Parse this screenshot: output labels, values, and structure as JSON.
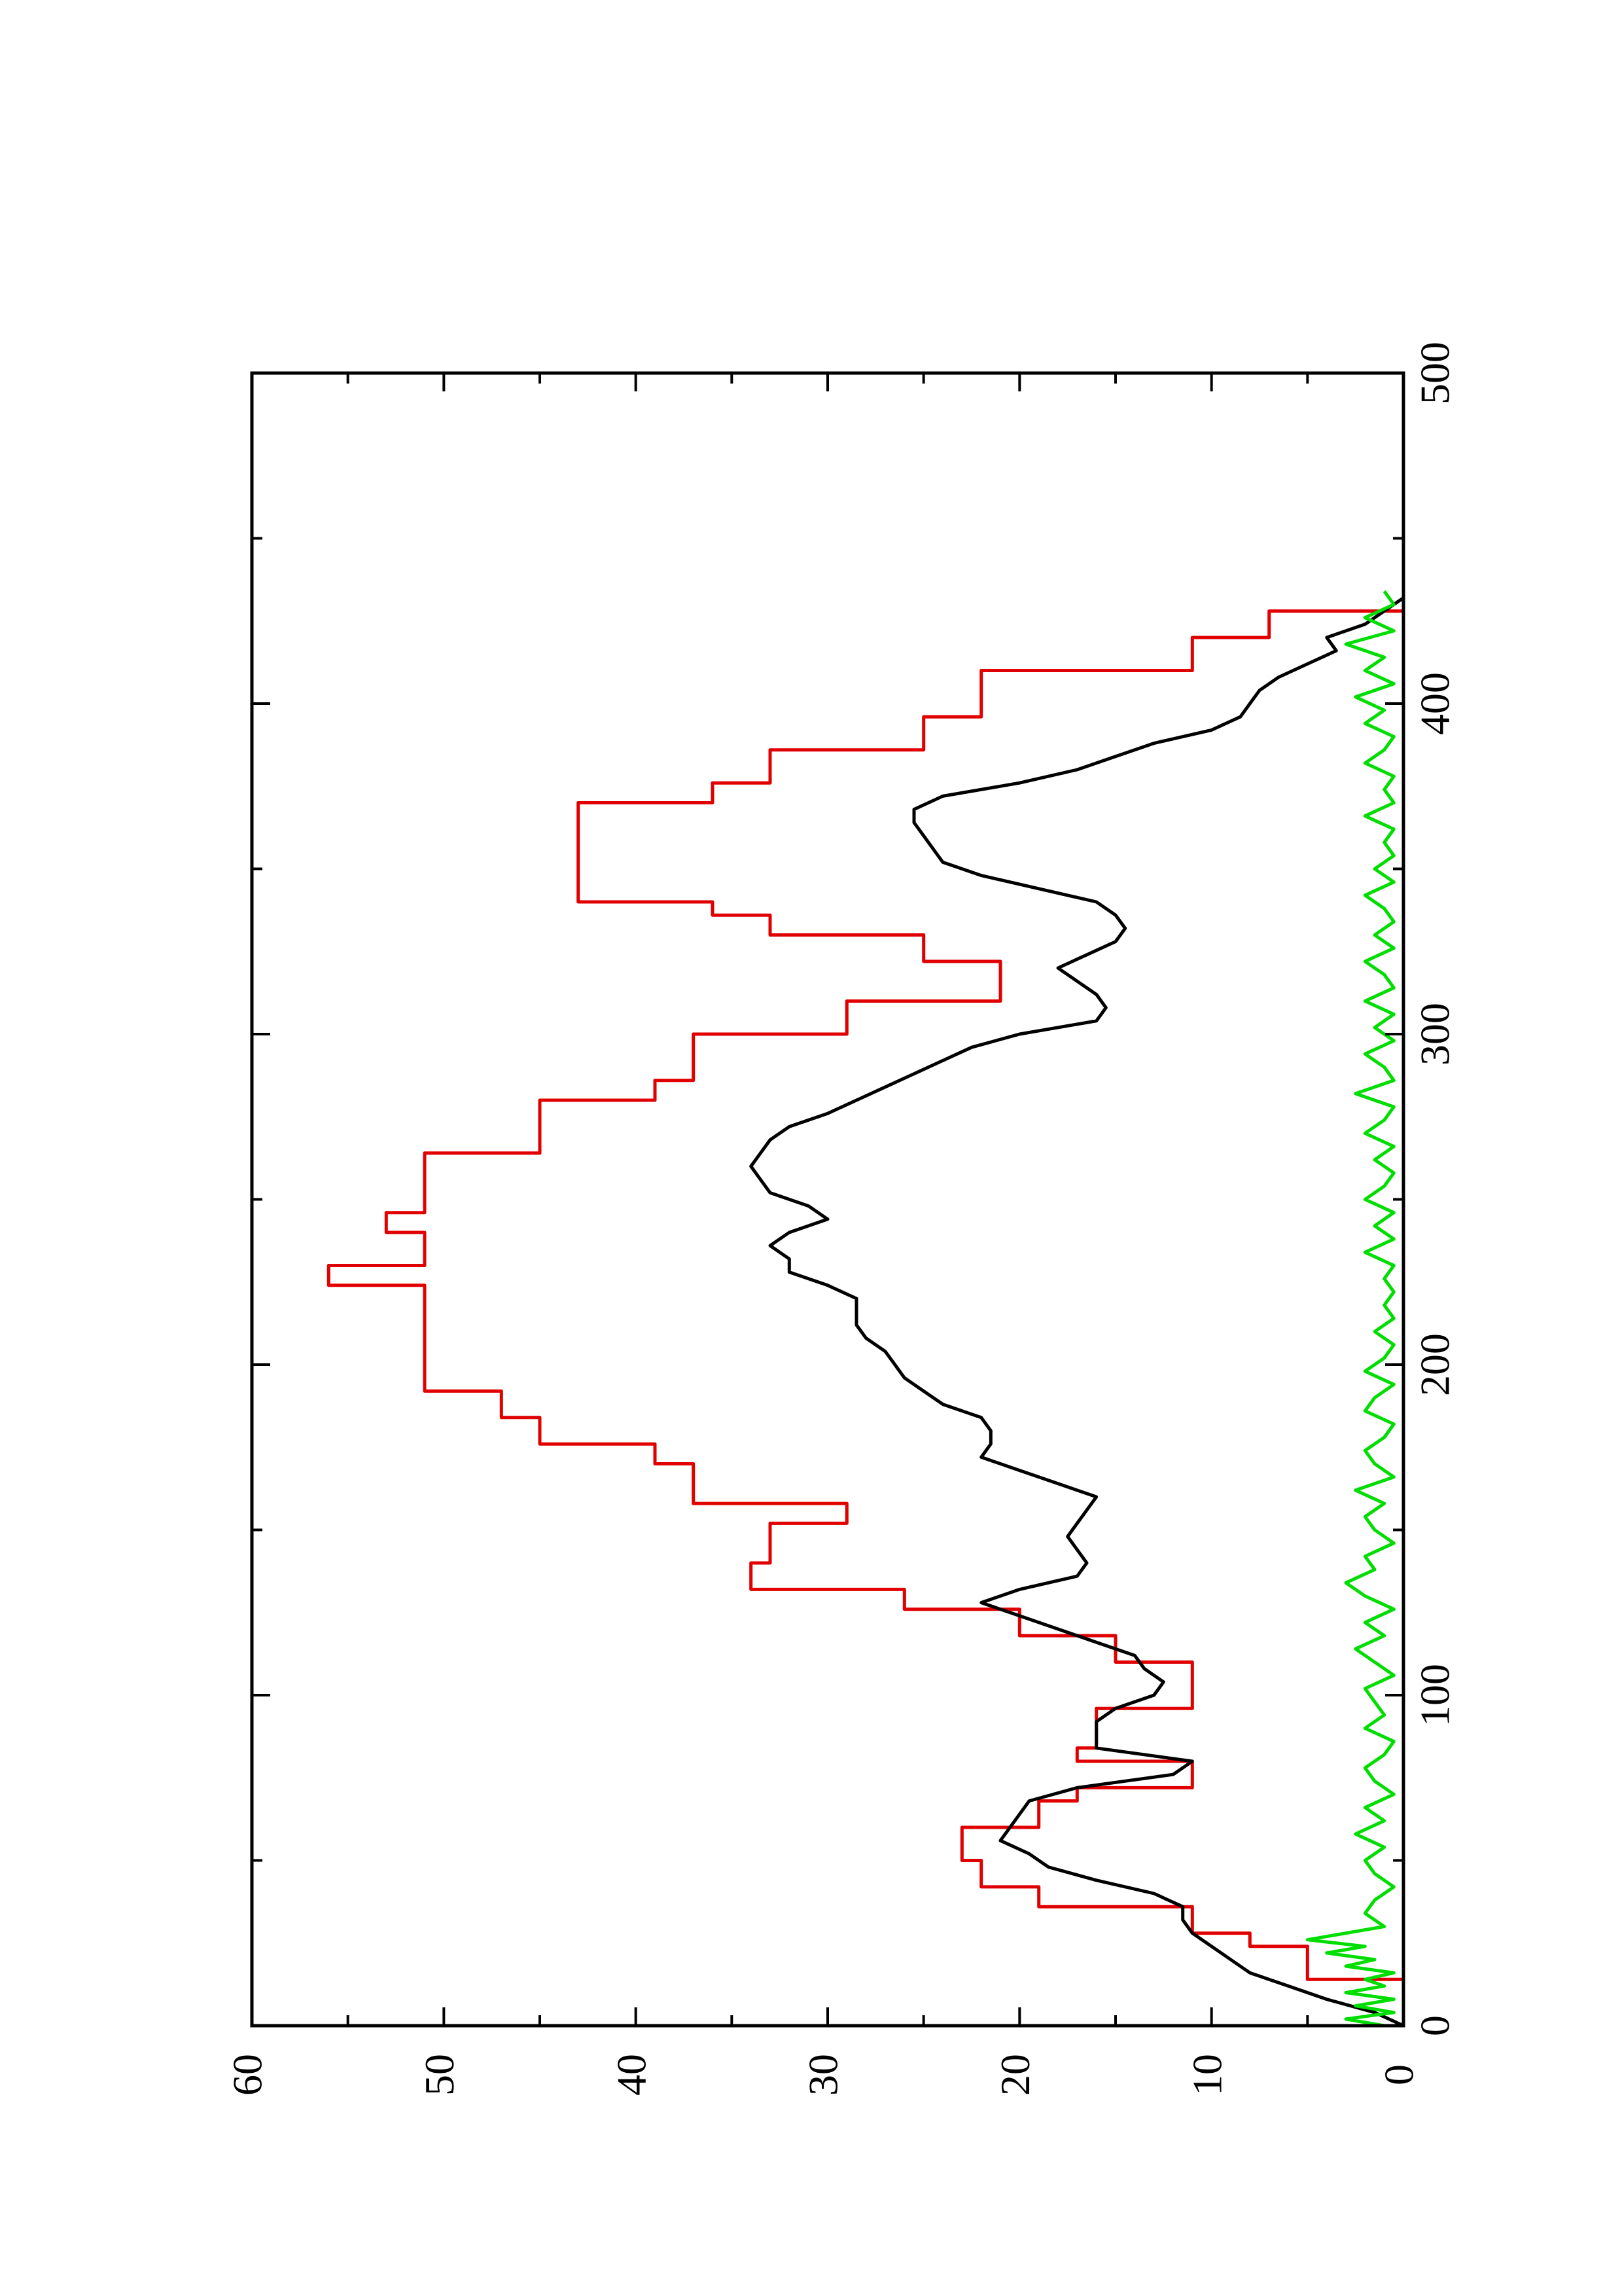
{
  "chart_data": {
    "type": "line",
    "orientation": "rotated-90-ccw",
    "title": "",
    "xlabel": "",
    "ylabel": "",
    "xlim": [
      0,
      500
    ],
    "ylim": [
      0,
      60
    ],
    "x_ticks": [
      0,
      100,
      200,
      300,
      400,
      500
    ],
    "x_minor_ticks": [
      50,
      150,
      250,
      350,
      450
    ],
    "y_ticks": [
      0,
      10,
      20,
      30,
      40,
      50,
      60
    ],
    "y_minor_ticks": [
      5,
      15,
      25,
      35,
      45,
      55
    ],
    "x_tick_labels": [
      "0",
      "100",
      "200",
      "300",
      "400",
      "500"
    ],
    "y_tick_labels": [
      "0",
      "10",
      "20",
      "30",
      "40",
      "50",
      "60"
    ],
    "grid": false,
    "legend": "none",
    "series": [
      {
        "color": "#e00000",
        "style": "stepped",
        "x": [
          0,
          14,
          14,
          24,
          24,
          28,
          28,
          36,
          36,
          42,
          42,
          50,
          50,
          60,
          60,
          68,
          68,
          72,
          72,
          80,
          80,
          84,
          84,
          96,
          96,
          110,
          110,
          118,
          118,
          126,
          126,
          132,
          132,
          140,
          140,
          152,
          152,
          158,
          158,
          170,
          170,
          176,
          176,
          184,
          184,
          192,
          192,
          200,
          200,
          224,
          224,
          230,
          230,
          240,
          240,
          246,
          246,
          252,
          252,
          256,
          256,
          264,
          264,
          280,
          280,
          286,
          286,
          300,
          300,
          310,
          310,
          322,
          322,
          330,
          330,
          336,
          336,
          340,
          340,
          350,
          350,
          370,
          370,
          376,
          376,
          386,
          386,
          396,
          396,
          410,
          410,
          420,
          420,
          428,
          428,
          430
        ],
        "y": [
          0,
          0,
          5,
          5,
          8,
          8,
          11,
          11,
          19,
          19,
          22,
          22,
          23,
          23,
          19,
          19,
          17,
          17,
          11,
          11,
          17,
          17,
          16,
          16,
          11,
          11,
          15,
          15,
          20,
          20,
          26,
          26,
          34,
          34,
          33,
          33,
          29,
          29,
          37,
          37,
          39,
          39,
          45,
          45,
          47,
          47,
          51,
          51,
          51,
          51,
          56,
          56,
          51,
          51,
          53,
          53,
          51,
          51,
          51,
          51,
          51,
          51,
          45,
          45,
          39,
          39,
          37,
          37,
          29,
          29,
          21,
          21,
          25,
          25,
          33,
          33,
          36,
          36,
          43,
          43,
          43,
          43,
          36,
          36,
          33,
          33,
          25,
          25,
          22,
          22,
          11,
          11,
          7,
          7,
          0,
          0
        ]
      },
      {
        "color": "#000000",
        "style": "line",
        "x": [
          0,
          4,
          8,
          12,
          16,
          20,
          24,
          28,
          32,
          36,
          40,
          44,
          48,
          52,
          56,
          60,
          64,
          68,
          72,
          76,
          80,
          84,
          88,
          92,
          96,
          100,
          104,
          108,
          112,
          116,
          120,
          124,
          128,
          132,
          136,
          140,
          144,
          148,
          152,
          156,
          160,
          164,
          168,
          172,
          176,
          180,
          184,
          188,
          192,
          196,
          200,
          204,
          208,
          212,
          216,
          220,
          224,
          228,
          232,
          236,
          240,
          244,
          248,
          252,
          256,
          260,
          264,
          268,
          272,
          276,
          280,
          284,
          288,
          292,
          296,
          300,
          304,
          308,
          312,
          316,
          320,
          324,
          328,
          332,
          336,
          340,
          344,
          348,
          352,
          356,
          360,
          364,
          368,
          372,
          376,
          380,
          384,
          388,
          392,
          396,
          400,
          404,
          408,
          412,
          416,
          420,
          424,
          428,
          432
        ],
        "y": [
          0,
          1.5,
          4,
          6,
          8,
          9,
          10,
          11,
          11.5,
          11.5,
          13,
          16,
          18.5,
          19.5,
          21,
          20.5,
          20,
          19.5,
          17,
          12,
          11,
          16,
          16,
          16,
          15,
          13,
          12.5,
          13.5,
          14,
          16,
          18,
          20,
          22,
          20,
          17,
          16.5,
          17,
          17.5,
          17,
          16.5,
          16,
          18,
          20,
          22,
          21.5,
          21.5,
          22,
          24,
          25,
          26,
          26.5,
          27,
          28,
          28.5,
          28.5,
          28.5,
          30,
          32,
          32,
          33,
          32,
          30,
          31,
          33,
          33.5,
          34,
          33.5,
          33,
          32,
          30,
          28.5,
          27,
          25.5,
          24,
          22.5,
          20,
          16,
          15.5,
          16,
          17,
          18,
          16.5,
          15,
          14.5,
          15,
          16,
          19,
          22,
          24,
          24.5,
          25,
          25.5,
          25.5,
          24,
          20,
          17,
          15,
          13,
          10,
          8.5,
          8,
          7.5,
          6.5,
          5,
          3.5,
          4,
          2,
          1,
          0
        ]
      },
      {
        "color": "#00dd00",
        "style": "line",
        "x": [
          0,
          2,
          4,
          6,
          8,
          10,
          12,
          14,
          16,
          18,
          20,
          22,
          24,
          26,
          28,
          30,
          34,
          38,
          42,
          46,
          50,
          54,
          58,
          62,
          66,
          70,
          74,
          78,
          82,
          86,
          90,
          94,
          98,
          102,
          106,
          110,
          114,
          118,
          122,
          126,
          130,
          134,
          138,
          142,
          146,
          150,
          154,
          158,
          162,
          166,
          170,
          174,
          178,
          182,
          186,
          190,
          194,
          198,
          202,
          206,
          210,
          214,
          218,
          222,
          226,
          230,
          234,
          238,
          242,
          246,
          250,
          254,
          258,
          262,
          266,
          270,
          274,
          278,
          282,
          286,
          290,
          294,
          298,
          302,
          306,
          310,
          314,
          318,
          322,
          326,
          330,
          334,
          338,
          342,
          346,
          350,
          354,
          358,
          362,
          366,
          370,
          374,
          378,
          382,
          386,
          390,
          394,
          398,
          402,
          406,
          410,
          414,
          418,
          422,
          426,
          430,
          434
        ],
        "y": [
          1,
          3,
          0.5,
          2.5,
          0.5,
          3,
          1,
          2,
          0.5,
          3,
          1.5,
          4,
          2,
          5,
          3,
          1,
          2,
          1.5,
          0.5,
          1.5,
          2,
          1,
          2.5,
          1,
          2,
          0.5,
          1.5,
          2,
          1,
          0.5,
          2,
          1,
          1.5,
          2,
          0.5,
          1.5,
          2.5,
          1,
          2,
          0.5,
          2,
          3,
          1.5,
          2,
          0.5,
          1.5,
          2,
          1,
          2.5,
          0.5,
          1.5,
          2,
          1,
          0.5,
          2,
          1.5,
          0.5,
          2,
          1,
          0.5,
          1.5,
          0.5,
          1,
          0.5,
          1,
          0.5,
          2,
          0.5,
          1.5,
          0.5,
          2,
          1,
          0.5,
          1.5,
          0.5,
          2,
          1,
          0.5,
          2.5,
          0.5,
          1,
          2,
          0.5,
          1.5,
          0.5,
          2,
          0.5,
          1,
          2,
          0.5,
          1.5,
          0.5,
          1,
          2,
          0.5,
          1.5,
          0.5,
          1,
          0.5,
          2,
          0.5,
          1,
          0.5,
          2,
          1,
          0.5,
          2,
          1,
          2.5,
          0.5,
          2,
          1,
          3,
          0.5,
          2,
          0.5,
          1
        ]
      }
    ]
  }
}
